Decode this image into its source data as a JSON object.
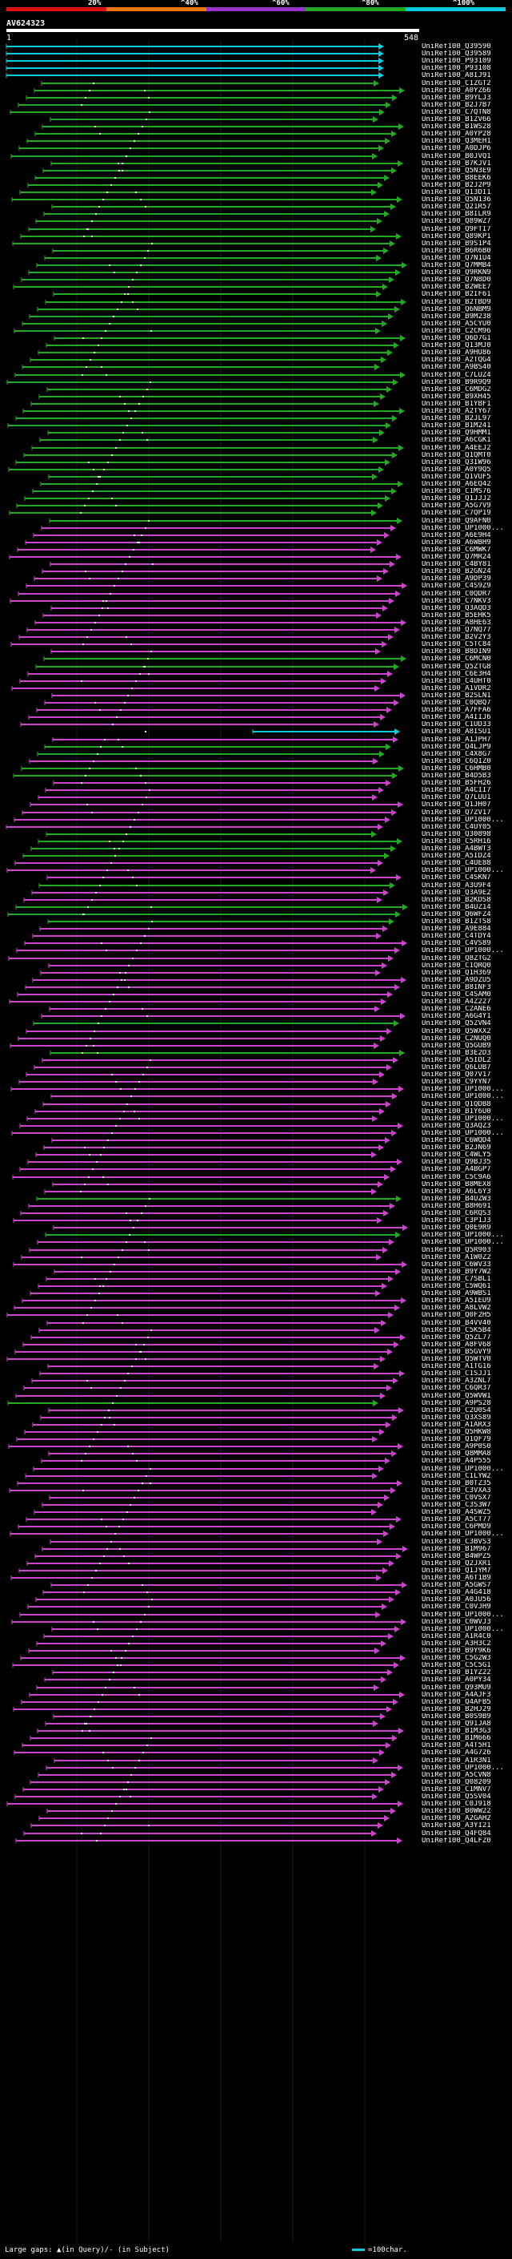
{
  "scale": {
    "labels": [
      "20%",
      "^40%",
      "^60%",
      "^80%",
      "^100%"
    ],
    "colors": [
      "#dd1111",
      "#ee7711",
      "#9933cc",
      "#22aa22",
      "#00ccdd"
    ]
  },
  "query": {
    "name": "AV624323",
    "start": "1",
    "end": "548"
  },
  "colors": {
    "cyan": "#00ccdd",
    "green": "#22aa22",
    "magenta": "#cc44cc",
    "gap": "#ffffff"
  },
  "hits": [
    {
      "id": "UniRef100_Q39590",
      "c": "cyan"
    },
    {
      "id": "UniRef100_Q39589",
      "c": "cyan"
    },
    {
      "id": "UniRef100_P93109",
      "c": "cyan"
    },
    {
      "id": "UniRef100_P93108",
      "c": "cyan"
    },
    {
      "id": "UniRef100_A8IJ91",
      "c": "cyan"
    },
    {
      "id": "UniRef100_C1ZGT2",
      "c": "green"
    },
    {
      "id": "UniRef100_A0YZ66",
      "c": "green"
    },
    {
      "id": "UniRef100_B9YLJ3",
      "c": "green"
    },
    {
      "id": "UniRef100_B2J7B7",
      "c": "green"
    },
    {
      "id": "UniRef100_C7QTN8",
      "c": "green"
    },
    {
      "id": "UniRef100_B1ZV66",
      "c": "green"
    },
    {
      "id": "UniRef100_B1WS28",
      "c": "green"
    },
    {
      "id": "UniRef100_A0YP28",
      "c": "green"
    },
    {
      "id": "UniRef100_Q3MEH1",
      "c": "green"
    },
    {
      "id": "UniRef100_A0DJP6",
      "c": "green"
    },
    {
      "id": "UniRef100_B0JVQ1",
      "c": "green"
    },
    {
      "id": "UniRef100_B7KJV1",
      "c": "green"
    },
    {
      "id": "UniRef100_Q5N3E9",
      "c": "green"
    },
    {
      "id": "UniRef100_B8EEK6",
      "c": "green"
    },
    {
      "id": "UniRef100_B2J2P9",
      "c": "green"
    },
    {
      "id": "UniRef100_Q13DI1",
      "c": "green"
    },
    {
      "id": "UniRef100_Q5N136",
      "c": "green"
    },
    {
      "id": "UniRef100_Q21R57",
      "c": "green"
    },
    {
      "id": "UniRef100_B8ILR9",
      "c": "green"
    },
    {
      "id": "UniRef100_Q89WZ7",
      "c": "green"
    },
    {
      "id": "UniRef100_Q9FTI7",
      "c": "green"
    },
    {
      "id": "UniRef100_Q89KP1",
      "c": "green"
    },
    {
      "id": "UniRef100_B9S1P4",
      "c": "green"
    },
    {
      "id": "UniRef100_B6R6B0",
      "c": "green"
    },
    {
      "id": "UniRef100_Q7N1U4",
      "c": "green"
    },
    {
      "id": "UniRef100_Q7MMB4",
      "c": "green"
    },
    {
      "id": "UniRef100_Q9RKN9",
      "c": "green"
    },
    {
      "id": "UniRef100_Q7N8D0",
      "c": "green"
    },
    {
      "id": "UniRef100_B2WEE7",
      "c": "green"
    },
    {
      "id": "UniRef100_B2IF61",
      "c": "green"
    },
    {
      "id": "UniRef100_B2TBD9",
      "c": "green"
    },
    {
      "id": "UniRef100_Q6NBM9",
      "c": "green"
    },
    {
      "id": "UniRef100_B9M238",
      "c": "green"
    },
    {
      "id": "UniRef100_A5CYU0",
      "c": "green"
    },
    {
      "id": "UniRef100_C2CM96",
      "c": "green"
    },
    {
      "id": "UniRef100_Q6D7G1",
      "c": "green"
    },
    {
      "id": "UniRef100_Q13MJ0",
      "c": "green"
    },
    {
      "id": "UniRef100_A9HU86",
      "c": "green"
    },
    {
      "id": "UniRef100_A2TQG4",
      "c": "green"
    },
    {
      "id": "UniRef100_A9BS40",
      "c": "green"
    },
    {
      "id": "UniRef100_C7LUZ4",
      "c": "green"
    },
    {
      "id": "UniRef100_B9R9Q9",
      "c": "green"
    },
    {
      "id": "UniRef100_C6MDG2",
      "c": "green"
    },
    {
      "id": "UniRef100_B9XH45",
      "c": "green"
    },
    {
      "id": "UniRef100_B1YBF1",
      "c": "green"
    },
    {
      "id": "UniRef100_A2TY67",
      "c": "green"
    },
    {
      "id": "UniRef100_B2JL97",
      "c": "green"
    },
    {
      "id": "UniRef100_B1M241",
      "c": "green"
    },
    {
      "id": "UniRef100_Q9HMM1",
      "c": "green"
    },
    {
      "id": "UniRef100_A6CGK1",
      "c": "green"
    },
    {
      "id": "UniRef100_A4EEJ2",
      "c": "green"
    },
    {
      "id": "UniRef100_Q1QMT0",
      "c": "green"
    },
    {
      "id": "UniRef100_Q3IW96",
      "c": "green"
    },
    {
      "id": "UniRef100_A0Y9Q5",
      "c": "green"
    },
    {
      "id": "UniRef100_Q1VUF5",
      "c": "green"
    },
    {
      "id": "UniRef100_A6EQ42",
      "c": "green"
    },
    {
      "id": "UniRef100_C1MS76",
      "c": "green"
    },
    {
      "id": "UniRef100_Q1JJJ2",
      "c": "green"
    },
    {
      "id": "UniRef100_A5G7V9",
      "c": "green"
    },
    {
      "id": "UniRef100_C7QP19",
      "c": "green"
    },
    {
      "id": "UniRef100_Q9AFN0",
      "c": "green"
    },
    {
      "id": "UniRef100_UP1000...",
      "c": "magenta"
    },
    {
      "id": "UniRef100_A6E9H4",
      "c": "magenta"
    },
    {
      "id": "UniRef100_A6WBH9",
      "c": "magenta"
    },
    {
      "id": "UniRef100_C6MWK7",
      "c": "magenta"
    },
    {
      "id": "UniRef100_Q7MR24",
      "c": "magenta"
    },
    {
      "id": "UniRef100_C4BY81",
      "c": "magenta"
    },
    {
      "id": "UniRef100_B2GN24",
      "c": "magenta"
    },
    {
      "id": "UniRef100_A9DP39",
      "c": "magenta"
    },
    {
      "id": "UniRef100_C4S9Z9",
      "c": "magenta"
    },
    {
      "id": "UniRef100_C0QDR7",
      "c": "magenta"
    },
    {
      "id": "UniRef100_C7NKV3",
      "c": "magenta"
    },
    {
      "id": "UniRef100_Q3AQD3",
      "c": "magenta"
    },
    {
      "id": "UniRef100_B5EHK5",
      "c": "magenta"
    },
    {
      "id": "UniRef100_A8HE63",
      "c": "magenta"
    },
    {
      "id": "UniRef100_Q7NQ77",
      "c": "magenta"
    },
    {
      "id": "UniRef100_B2V2Y3",
      "c": "magenta"
    },
    {
      "id": "UniRef100_C5TC84",
      "c": "magenta"
    },
    {
      "id": "UniRef100_B8DIN9",
      "c": "magenta"
    },
    {
      "id": "UniRef100_C6MCN0",
      "c": "green"
    },
    {
      "id": "UniRef100_Q5ZTG8",
      "c": "green"
    },
    {
      "id": "UniRef100_C6E3H4",
      "c": "magenta"
    },
    {
      "id": "UniRef100_C4UHT0",
      "c": "magenta"
    },
    {
      "id": "UniRef100_A1VDR2",
      "c": "magenta"
    },
    {
      "id": "UniRef100_B2SLN1",
      "c": "magenta"
    },
    {
      "id": "UniRef100_C0QBQ7",
      "c": "magenta"
    },
    {
      "id": "UniRef100_A7FFA6",
      "c": "magenta"
    },
    {
      "id": "UniRef100_A4IIJ6",
      "c": "magenta"
    },
    {
      "id": "UniRef100_C1UD33",
      "c": "magenta"
    },
    {
      "id": "UniRef100_A8ISU1",
      "c": "cyan"
    },
    {
      "id": "UniRef100_A1JPH7",
      "c": "magenta"
    },
    {
      "id": "UniRef100_Q4LJP9",
      "c": "green"
    },
    {
      "id": "UniRef100_C4X8G7",
      "c": "green"
    },
    {
      "id": "UniRef100_C6QIZ0",
      "c": "magenta"
    },
    {
      "id": "UniRef100_C6HMB0",
      "c": "green"
    },
    {
      "id": "UniRef100_B4D5B3",
      "c": "green"
    },
    {
      "id": "UniRef100_B5FH26",
      "c": "magenta"
    },
    {
      "id": "UniRef100_A4CII7",
      "c": "magenta"
    },
    {
      "id": "UniRef100_Q7LUU1",
      "c": "magenta"
    },
    {
      "id": "UniRef100_Q1JH07",
      "c": "magenta"
    },
    {
      "id": "UniRef100_Q7ZV17",
      "c": "magenta"
    },
    {
      "id": "UniRef100_UP1000...",
      "c": "magenta"
    },
    {
      "id": "UniRef100_C4UY05",
      "c": "magenta"
    },
    {
      "id": "UniRef100_Q30898",
      "c": "green"
    },
    {
      "id": "UniRef100_C5RH16",
      "c": "green"
    },
    {
      "id": "UniRef100_A4BWT3",
      "c": "green"
    },
    {
      "id": "UniRef100_A5IDZ4",
      "c": "green"
    },
    {
      "id": "UniRef100_C4UE88",
      "c": "magenta"
    },
    {
      "id": "UniRef100_UP1000...",
      "c": "magenta"
    },
    {
      "id": "UniRef100_C4SKN7",
      "c": "magenta"
    },
    {
      "id": "UniRef100_A3U9F4",
      "c": "green"
    },
    {
      "id": "UniRef100_Q3A9E2",
      "c": "magenta"
    },
    {
      "id": "UniRef100_B2KDS8",
      "c": "magenta"
    },
    {
      "id": "UniRef100_B4UZ14",
      "c": "green"
    },
    {
      "id": "UniRef100_Q6WFZ4",
      "c": "green"
    },
    {
      "id": "UniRef100_B1ZTS8",
      "c": "green"
    },
    {
      "id": "UniRef100_A9E884",
      "c": "magenta"
    },
    {
      "id": "UniRef100_C4TDY4",
      "c": "magenta"
    },
    {
      "id": "UniRef100_C4VS89",
      "c": "magenta"
    },
    {
      "id": "UniRef100_UP1000...",
      "c": "magenta"
    },
    {
      "id": "UniRef100_Q8ZTG2",
      "c": "magenta"
    },
    {
      "id": "UniRef100_C1QRQ0",
      "c": "magenta"
    },
    {
      "id": "UniRef100_Q1H369",
      "c": "magenta"
    },
    {
      "id": "UniRef100_A9DZU5",
      "c": "magenta"
    },
    {
      "id": "UniRef100_B8INF3",
      "c": "magenta"
    },
    {
      "id": "UniRef100_C4SAM0",
      "c": "magenta"
    },
    {
      "id": "UniRef100_A4Z227",
      "c": "magenta"
    },
    {
      "id": "UniRef100_C2ANE6",
      "c": "magenta"
    },
    {
      "id": "UniRef100_A6G4Y1",
      "c": "magenta"
    },
    {
      "id": "UniRef100_Q5ZVN4",
      "c": "green"
    },
    {
      "id": "UniRef100_Q5WXX2",
      "c": "magenta"
    },
    {
      "id": "UniRef100_C2NUQ0",
      "c": "magenta"
    },
    {
      "id": "UniRef100_Q5GUB9",
      "c": "magenta"
    },
    {
      "id": "UniRef100_B3E2D3",
      "c": "green"
    },
    {
      "id": "UniRef100_A5IDL2",
      "c": "magenta"
    },
    {
      "id": "UniRef100_Q6LUB7",
      "c": "magenta"
    },
    {
      "id": "UniRef100_Q07V17",
      "c": "magenta"
    },
    {
      "id": "UniRef100_C9YYN7",
      "c": "magenta"
    },
    {
      "id": "UniRef100_UP1000...",
      "c": "magenta"
    },
    {
      "id": "UniRef100_UP1000...",
      "c": "magenta"
    },
    {
      "id": "UniRef100_Q1QDB8",
      "c": "magenta"
    },
    {
      "id": "UniRef100_B1Y6U0",
      "c": "magenta"
    },
    {
      "id": "UniRef100_UP1000...",
      "c": "magenta"
    },
    {
      "id": "UniRef100_Q3AQZ3",
      "c": "magenta"
    },
    {
      "id": "UniRef100_UP1000...",
      "c": "magenta"
    },
    {
      "id": "UniRef100_C6WQD4",
      "c": "magenta"
    },
    {
      "id": "UniRef100_B2JN69",
      "c": "magenta"
    },
    {
      "id": "UniRef100_C4WLY5",
      "c": "magenta"
    },
    {
      "id": "UniRef100_Q9BJ35",
      "c": "magenta"
    },
    {
      "id": "UniRef100_A4BGP7",
      "c": "magenta"
    },
    {
      "id": "UniRef100_C5C9A6",
      "c": "magenta"
    },
    {
      "id": "UniRef100_B8MEX8",
      "c": "magenta"
    },
    {
      "id": "UniRef100_A6L6Y3",
      "c": "magenta"
    },
    {
      "id": "UniRef100_B4UZW3",
      "c": "green"
    },
    {
      "id": "UniRef100_B8H691",
      "c": "magenta"
    },
    {
      "id": "UniRef100_C6RQS3",
      "c": "magenta"
    },
    {
      "id": "UniRef100_C3P1J3",
      "c": "magenta"
    },
    {
      "id": "UniRef100_Q0E9R9",
      "c": "magenta"
    },
    {
      "id": "UniRef100_UP1000...",
      "c": "green"
    },
    {
      "id": "UniRef100_UP1000...",
      "c": "magenta"
    },
    {
      "id": "UniRef100_Q5R903",
      "c": "magenta"
    },
    {
      "id": "UniRef100_A1W0Z2",
      "c": "magenta"
    },
    {
      "id": "UniRef100_C6WV33",
      "c": "magenta"
    },
    {
      "id": "UniRef100_B9Y7W2",
      "c": "magenta"
    },
    {
      "id": "UniRef100_C7SBL1",
      "c": "magenta"
    },
    {
      "id": "UniRef100_C5WQ61",
      "c": "magenta"
    },
    {
      "id": "UniRef100_A9WBS1",
      "c": "magenta"
    },
    {
      "id": "UniRef100_A5IEU9",
      "c": "magenta"
    },
    {
      "id": "UniRef100_A8LVW2",
      "c": "magenta"
    },
    {
      "id": "UniRef100_Q0F2H5",
      "c": "magenta"
    },
    {
      "id": "UniRef100_B4VV40",
      "c": "magenta"
    },
    {
      "id": "UniRef100_C5K5B4",
      "c": "magenta"
    },
    {
      "id": "UniRef100_Q5ZL77",
      "c": "magenta"
    },
    {
      "id": "UniRef100_A8FV68",
      "c": "magenta"
    },
    {
      "id": "UniRef100_B5GVY9",
      "c": "magenta"
    },
    {
      "id": "UniRef100_Q5WTV0",
      "c": "magenta"
    },
    {
      "id": "UniRef100_A1TG16",
      "c": "magenta"
    },
    {
      "id": "UniRef100_C1SJJ1",
      "c": "magenta"
    },
    {
      "id": "UniRef100_A3ZNL7",
      "c": "magenta"
    },
    {
      "id": "UniRef100_C6QR37",
      "c": "magenta"
    },
    {
      "id": "UniRef100_Q5WVW1",
      "c": "magenta"
    },
    {
      "id": "UniRef100_A9PS28",
      "c": "green"
    },
    {
      "id": "UniRef100_C2U0S4",
      "c": "magenta"
    },
    {
      "id": "UniRef100_Q3XS89",
      "c": "magenta"
    },
    {
      "id": "UniRef100_A1ARX3",
      "c": "magenta"
    },
    {
      "id": "UniRef100_Q5HKW8",
      "c": "magenta"
    },
    {
      "id": "UniRef100_Q1QF79",
      "c": "magenta"
    },
    {
      "id": "UniRef100_A9P0S0",
      "c": "magenta"
    },
    {
      "id": "UniRef100_Q8MMA8",
      "c": "magenta"
    },
    {
      "id": "UniRef100_A4P555",
      "c": "magenta"
    },
    {
      "id": "UniRef100_UP1000...",
      "c": "magenta"
    },
    {
      "id": "UniRef100_C1LYW2",
      "c": "magenta"
    },
    {
      "id": "UniRef100_B0TZ35",
      "c": "magenta"
    },
    {
      "id": "UniRef100_C3VXA3",
      "c": "magenta"
    },
    {
      "id": "UniRef100_C0VSX7",
      "c": "magenta"
    },
    {
      "id": "UniRef100_C3S3W7",
      "c": "magenta"
    },
    {
      "id": "UniRef100_A4SWZ5",
      "c": "magenta"
    },
    {
      "id": "UniRef100_A5CT77",
      "c": "magenta"
    },
    {
      "id": "UniRef100_C6PMD9",
      "c": "magenta"
    },
    {
      "id": "UniRef100_UP1000...",
      "c": "magenta"
    },
    {
      "id": "UniRef100_C3BVS3",
      "c": "magenta"
    },
    {
      "id": "UniRef100_B1M967",
      "c": "magenta"
    },
    {
      "id": "UniRef100_B4WPZ5",
      "c": "magenta"
    },
    {
      "id": "UniRef100_Q2JXR1",
      "c": "magenta"
    },
    {
      "id": "UniRef100_Q1JYM7",
      "c": "magenta"
    },
    {
      "id": "UniRef100_A6T1B9",
      "c": "magenta"
    },
    {
      "id": "UniRef100_A5GWS7",
      "c": "magenta"
    },
    {
      "id": "UniRef100_A4G418",
      "c": "magenta"
    },
    {
      "id": "UniRef100_A0JU56",
      "c": "magenta"
    },
    {
      "id": "UniRef100_C0VJH9",
      "c": "magenta"
    },
    {
      "id": "UniRef100_UP1000...",
      "c": "magenta"
    },
    {
      "id": "UniRef100_C0WVJ3",
      "c": "magenta"
    },
    {
      "id": "UniRef100_UP1000...",
      "c": "magenta"
    },
    {
      "id": "UniRef100_A1R4C0",
      "c": "magenta"
    },
    {
      "id": "UniRef100_A3H3C2",
      "c": "magenta"
    },
    {
      "id": "UniRef100_B9Y9K6",
      "c": "magenta"
    },
    {
      "id": "UniRef100_C5G2W3",
      "c": "magenta"
    },
    {
      "id": "UniRef100_C5C5G1",
      "c": "magenta"
    },
    {
      "id": "UniRef100_B1YZ22",
      "c": "magenta"
    },
    {
      "id": "UniRef100_A0PY34",
      "c": "magenta"
    },
    {
      "id": "UniRef100_Q93MU9",
      "c": "magenta"
    },
    {
      "id": "UniRef100_A4AJF3",
      "c": "magenta"
    },
    {
      "id": "UniRef100_Q4AFB5",
      "c": "magenta"
    },
    {
      "id": "UniRef100_B2HJ29",
      "c": "magenta"
    },
    {
      "id": "UniRef100_B0S9B9",
      "c": "magenta"
    },
    {
      "id": "UniRef100_Q91JA8",
      "c": "magenta"
    },
    {
      "id": "UniRef100_B1M3G3",
      "c": "magenta"
    },
    {
      "id": "UniRef100_B1M666",
      "c": "magenta"
    },
    {
      "id": "UniRef100_A4T5H1",
      "c": "magenta"
    },
    {
      "id": "UniRef100_A4G726",
      "c": "magenta"
    },
    {
      "id": "UniRef100_A1R3N1",
      "c": "magenta"
    },
    {
      "id": "UniRef100_UP1000...",
      "c": "magenta"
    },
    {
      "id": "UniRef100_A5CVN8",
      "c": "magenta"
    },
    {
      "id": "UniRef100_Q08209",
      "c": "magenta"
    },
    {
      "id": "UniRef100_C1MNV7",
      "c": "magenta"
    },
    {
      "id": "UniRef100_Q5SV04",
      "c": "magenta"
    },
    {
      "id": "UniRef100_C0J918",
      "c": "magenta"
    },
    {
      "id": "UniRef100_B0WW22",
      "c": "magenta"
    },
    {
      "id": "UniRef100_A2GAH2",
      "c": "magenta"
    },
    {
      "id": "UniRef100_A3YI21",
      "c": "magenta"
    },
    {
      "id": "UniRef100_Q4FQ84",
      "c": "magenta"
    },
    {
      "id": "UniRef100_Q4LFZ0",
      "c": "magenta"
    }
  ],
  "legend": {
    "gaps_text": "Large gaps: ▲(in Query)/- (in Subject)",
    "scale_text": "=100char."
  }
}
